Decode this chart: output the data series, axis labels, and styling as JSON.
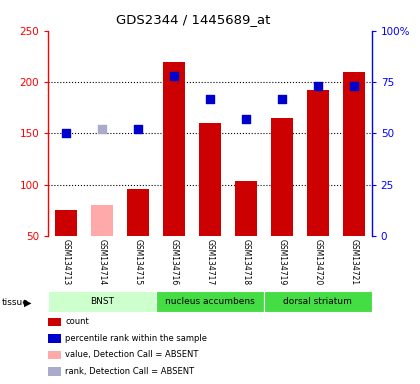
{
  "title": "GDS2344 / 1445689_at",
  "samples": [
    "GSM134713",
    "GSM134714",
    "GSM134715",
    "GSM134716",
    "GSM134717",
    "GSM134718",
    "GSM134719",
    "GSM134720",
    "GSM134721"
  ],
  "counts": [
    75,
    80,
    96,
    220,
    160,
    104,
    165,
    192,
    210
  ],
  "absent_mask": [
    false,
    true,
    false,
    false,
    false,
    false,
    false,
    false,
    false
  ],
  "percentile_rank_pct": [
    50,
    null,
    52,
    78,
    67,
    57,
    67,
    73,
    73
  ],
  "absent_rank_pct": [
    null,
    52,
    null,
    null,
    null,
    null,
    null,
    null,
    null
  ],
  "ylim_left": [
    50,
    250
  ],
  "ylim_right": [
    0,
    100
  ],
  "yticks_left": [
    50,
    100,
    150,
    200,
    250
  ],
  "yticks_right": [
    0,
    25,
    50,
    75,
    100
  ],
  "yticklabels_right": [
    "0",
    "25",
    "50",
    "75",
    "100%"
  ],
  "bar_color_present": "#cc0000",
  "bar_color_absent": "#ffaaaa",
  "dot_color_present": "#0000cc",
  "dot_color_absent": "#aaaacc",
  "tissue_groups": [
    {
      "label": "BNST",
      "start": 0,
      "end": 3,
      "color": "#ccffcc"
    },
    {
      "label": "nucleus accumbens",
      "start": 3,
      "end": 6,
      "color": "#44dd44"
    },
    {
      "label": "dorsal striatum",
      "start": 6,
      "end": 9,
      "color": "#44dd44"
    }
  ],
  "legend_items": [
    {
      "color": "#cc0000",
      "label": "count"
    },
    {
      "color": "#0000cc",
      "label": "percentile rank within the sample"
    },
    {
      "color": "#ffaaaa",
      "label": "value, Detection Call = ABSENT"
    },
    {
      "color": "#aaaacc",
      "label": "rank, Detection Call = ABSENT"
    }
  ],
  "bar_width": 0.6,
  "dot_size": 28,
  "background_color": "#ffffff",
  "grid_color": "#000000"
}
